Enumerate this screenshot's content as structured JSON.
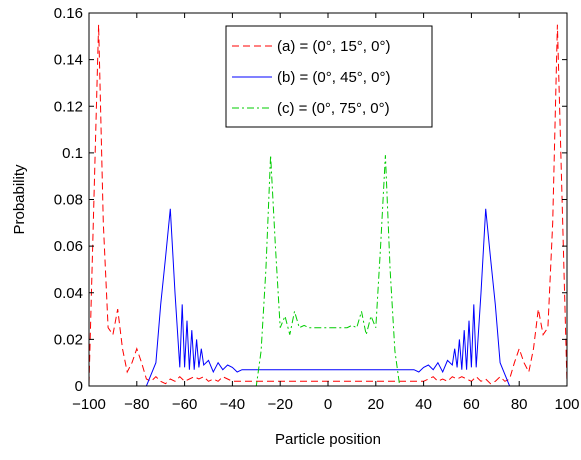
{
  "chart_data": {
    "type": "line",
    "title": "",
    "xlabel": "Particle position",
    "ylabel": "Probability",
    "xlim": [
      -100,
      100
    ],
    "ylim": [
      0,
      0.16
    ],
    "x_ticks": [
      -100,
      -80,
      -60,
      -40,
      -20,
      0,
      20,
      40,
      60,
      80,
      100
    ],
    "x_tick_labels": [
      "−100",
      "−80",
      "−60",
      "−40",
      "−20",
      "0",
      "20",
      "40",
      "60",
      "80",
      "100"
    ],
    "y_ticks": [
      0,
      0.02,
      0.04,
      0.06,
      0.08,
      0.1,
      0.12,
      0.14,
      0.16
    ],
    "y_tick_labels": [
      "0",
      "0.02",
      "0.04",
      "0.06",
      "0.08",
      "0.1",
      "0.12",
      "0.14",
      "0.16"
    ],
    "grid": false,
    "legend_position": "top-right",
    "series": [
      {
        "name": "(a) = (0°, 15°, 0°)",
        "color": "#ff0000",
        "dash": "dashed",
        "x": [
          -100,
          -96,
          -94,
          -92,
          -90,
          -88,
          -86,
          -84,
          -82,
          -80,
          -78,
          -76,
          -74,
          -72,
          -70,
          -68,
          -66,
          -64,
          -62,
          -60,
          -58,
          -56,
          -54,
          -52,
          -50,
          -48,
          -46,
          -44,
          -42,
          -40,
          -30,
          -20,
          -10,
          0,
          10,
          20,
          30,
          40,
          42,
          44,
          46,
          48,
          50,
          52,
          54,
          56,
          58,
          60,
          62,
          64,
          66,
          68,
          70,
          72,
          74,
          76,
          78,
          80,
          82,
          84,
          86,
          88,
          90,
          92,
          94,
          96,
          100
        ],
        "y": [
          0.001,
          0.155,
          0.07,
          0.025,
          0.022,
          0.033,
          0.016,
          0.006,
          0.01,
          0.016,
          0.01,
          0.003,
          0.002,
          0.004,
          0.002,
          0.001,
          0.003,
          0.002,
          0.004,
          0.002,
          0.003,
          0.004,
          0.003,
          0.004,
          0.002,
          0.003,
          0.002,
          0.004,
          0.003,
          0.002,
          0.002,
          0.002,
          0.002,
          0.002,
          0.002,
          0.002,
          0.002,
          0.002,
          0.003,
          0.004,
          0.002,
          0.003,
          0.002,
          0.004,
          0.003,
          0.004,
          0.003,
          0.002,
          0.004,
          0.002,
          0.003,
          0.001,
          0.002,
          0.004,
          0.002,
          0.003,
          0.01,
          0.016,
          0.01,
          0.006,
          0.016,
          0.033,
          0.022,
          0.025,
          0.07,
          0.155,
          0.001
        ]
      },
      {
        "name": "(b) = (0°, 45°, 0°)",
        "color": "#0000ff",
        "dash": "solid",
        "x": [
          -100,
          -76,
          -72,
          -70,
          -68,
          -66,
          -64,
          -62,
          -61,
          -60,
          -59,
          -58,
          -57,
          -56,
          -55,
          -54,
          -53,
          -52,
          -50,
          -48,
          -46,
          -44,
          -42,
          -40,
          -38,
          -36,
          -30,
          -20,
          -10,
          0,
          10,
          20,
          30,
          36,
          38,
          40,
          42,
          44,
          46,
          48,
          50,
          52,
          53,
          54,
          55,
          56,
          57,
          58,
          59,
          60,
          61,
          62,
          64,
          66,
          68,
          70,
          72,
          76,
          100
        ],
        "y": [
          0,
          0,
          0.01,
          0.035,
          0.055,
          0.076,
          0.04,
          0.008,
          0.035,
          0.008,
          0.028,
          0.007,
          0.024,
          0.007,
          0.02,
          0.008,
          0.016,
          0.009,
          0.011,
          0.006,
          0.01,
          0.007,
          0.009,
          0.008,
          0.006,
          0.007,
          0.007,
          0.007,
          0.007,
          0.007,
          0.007,
          0.007,
          0.007,
          0.007,
          0.006,
          0.008,
          0.009,
          0.007,
          0.01,
          0.006,
          0.011,
          0.009,
          0.016,
          0.008,
          0.02,
          0.007,
          0.024,
          0.007,
          0.028,
          0.008,
          0.035,
          0.008,
          0.04,
          0.076,
          0.055,
          0.035,
          0.01,
          0,
          0
        ]
      },
      {
        "name": "(c) = (0°, 75°, 0°)",
        "color": "#00cc00",
        "dash": "dashdot",
        "x": [
          -100,
          -30,
          -28,
          -26,
          -24,
          -22,
          -20,
          -18,
          -16,
          -14,
          -12,
          -10,
          -8,
          -6,
          -4,
          -2,
          0,
          2,
          4,
          6,
          8,
          10,
          12,
          14,
          16,
          18,
          20,
          22,
          24,
          26,
          28,
          30,
          100
        ],
        "y": [
          0,
          0,
          0.015,
          0.05,
          0.099,
          0.06,
          0.025,
          0.03,
          0.022,
          0.032,
          0.025,
          0.026,
          0.025,
          0.025,
          0.025,
          0.025,
          0.025,
          0.025,
          0.025,
          0.025,
          0.025,
          0.026,
          0.025,
          0.032,
          0.022,
          0.03,
          0.025,
          0.06,
          0.099,
          0.05,
          0.015,
          0,
          0
        ]
      }
    ]
  }
}
